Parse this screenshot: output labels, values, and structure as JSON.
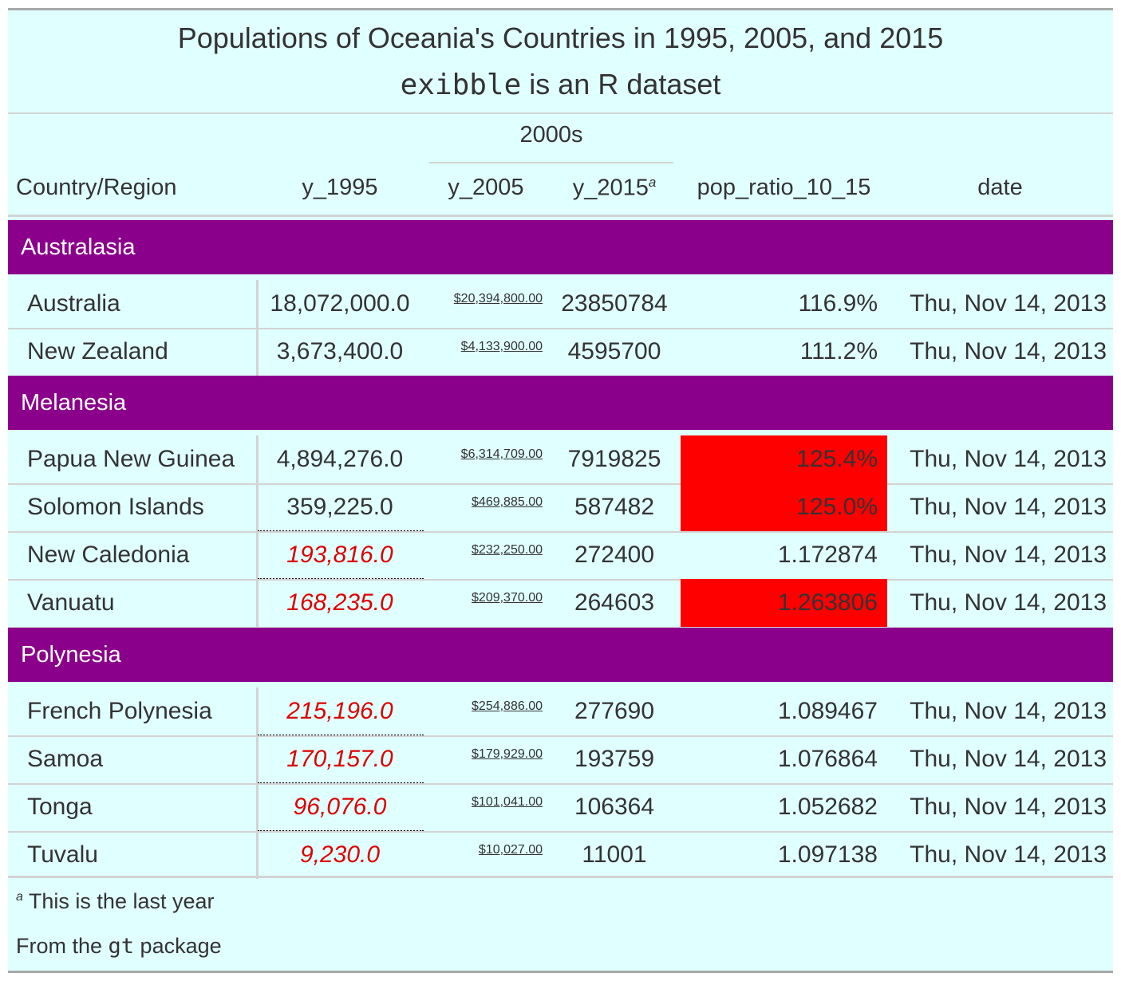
{
  "title": "Populations of Oceania's Countries in 1995, 2005, and 2015",
  "subtitle_code": "exibble",
  "subtitle_rest": " is an R dataset",
  "spanner": "2000s",
  "columns": {
    "country": "Country/Region",
    "y_1995": "y_1995",
    "y_2005": "y_2005",
    "y_2015": "y_2015",
    "y_2015_mark": "a",
    "pop_ratio": "pop_ratio_10_15",
    "date": "date"
  },
  "groups": [
    {
      "name": "Australasia",
      "rows": [
        {
          "country": "Australia",
          "y_1995": "18,072,000.0",
          "y_2005": "$20,394,800.00",
          "y_2015": "23850784",
          "pop_ratio": "116.9%",
          "date": "Thu, Nov 14, 2013"
        },
        {
          "country": "New Zealand",
          "y_1995": "3,673,400.0",
          "y_2005": "$4,133,900.00",
          "y_2015": "4595700",
          "pop_ratio": "111.2%",
          "date": "Thu, Nov 14, 2013"
        }
      ]
    },
    {
      "name": "Melanesia",
      "rows": [
        {
          "country": "Papua New Guinea",
          "y_1995": "4,894,276.0",
          "y_2005": "$6,314,709.00",
          "y_2015": "7919825",
          "pop_ratio": "125.4%",
          "date": "Thu, Nov 14, 2013"
        },
        {
          "country": "Solomon Islands",
          "y_1995": "359,225.0",
          "y_2005": "$469,885.00",
          "y_2015": "587482",
          "pop_ratio": "125.0%",
          "date": "Thu, Nov 14, 2013"
        },
        {
          "country": "New Caledonia",
          "y_1995": "193,816.0",
          "y_2005": "$232,250.00",
          "y_2015": "272400",
          "pop_ratio": "1.172874",
          "date": "Thu, Nov 14, 2013"
        },
        {
          "country": "Vanuatu",
          "y_1995": "168,235.0",
          "y_2005": "$209,370.00",
          "y_2015": "264603",
          "pop_ratio": "1.263806",
          "date": "Thu, Nov 14, 2013"
        }
      ]
    },
    {
      "name": "Polynesia",
      "rows": [
        {
          "country": "French Polynesia",
          "y_1995": "215,196.0",
          "y_2005": "$254,886.00",
          "y_2015": "277690",
          "pop_ratio": "1.089467",
          "date": "Thu, Nov 14, 2013"
        },
        {
          "country": "Samoa",
          "y_1995": "170,157.0",
          "y_2005": "$179,929.00",
          "y_2015": "193759",
          "pop_ratio": "1.076864",
          "date": "Thu, Nov 14, 2013"
        },
        {
          "country": "Tonga",
          "y_1995": "96,076.0",
          "y_2005": "$101,041.00",
          "y_2015": "106364",
          "pop_ratio": "1.052682",
          "date": "Thu, Nov 14, 2013"
        },
        {
          "country": "Tuvalu",
          "y_1995": "9,230.0",
          "y_2005": "$10,027.00",
          "y_2015": "11001",
          "pop_ratio": "1.097138",
          "date": "Thu, Nov 14, 2013"
        }
      ]
    }
  ],
  "footnote_mark": "a",
  "footnote_text": "This is the last year",
  "source_prefix": "From the ",
  "source_code": "gt",
  "source_suffix": " package",
  "colors": {
    "table_bg": "#e0ffff",
    "group_bg": "#8b008b",
    "highlight": "#ff0000",
    "red_text": "#dd0000"
  }
}
